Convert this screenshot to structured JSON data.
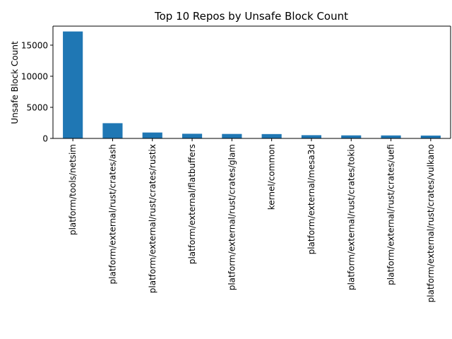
{
  "chart_data": {
    "type": "bar",
    "title": "Top 10 Repos by Unsafe Block Count",
    "xlabel": "",
    "ylabel": "Unsafe Block Count",
    "categories": [
      "platform/tools/netsim",
      "platform/external/rust/crates/ash",
      "platform/external/rust/crates/rustix",
      "platform/external/flatbuffers",
      "platform/external/rust/crates/glam",
      "kernel/common",
      "platform/external/mesa3d",
      "platform/external/rust/crates/tokio",
      "platform/external/rust/crates/uefi",
      "platform/external/rust/crates/vulkano"
    ],
    "values": [
      17200,
      2450,
      950,
      750,
      720,
      700,
      520,
      490,
      480,
      460
    ],
    "ylim": [
      0,
      18060
    ],
    "yticks": [
      0,
      5000,
      10000,
      15000
    ],
    "grid": false,
    "bar_color": "#1f77b4"
  }
}
